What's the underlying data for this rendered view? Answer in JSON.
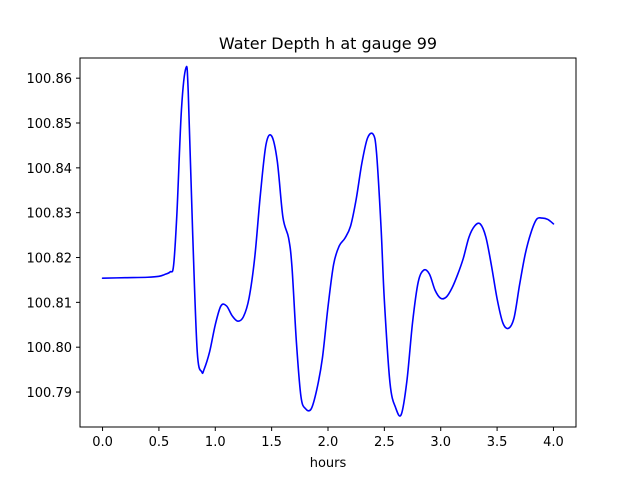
{
  "chart_data": {
    "type": "line",
    "title": "Water Depth h at gauge 99",
    "xlabel": "hours",
    "ylabel": "",
    "xlim": [
      -0.2,
      4.2
    ],
    "ylim": [
      100.7822,
      100.8645
    ],
    "xticks": [
      0.0,
      0.5,
      1.0,
      1.5,
      2.0,
      2.5,
      3.0,
      3.5,
      4.0
    ],
    "xtick_labels": [
      "0.0",
      "0.5",
      "1.0",
      "1.5",
      "2.0",
      "2.5",
      "3.0",
      "3.5",
      "4.0"
    ],
    "yticks": [
      100.79,
      100.8,
      100.81,
      100.82,
      100.83,
      100.84,
      100.85,
      100.86
    ],
    "ytick_labels": [
      "100.79",
      "100.80",
      "100.81",
      "100.82",
      "100.83",
      "100.84",
      "100.85",
      "100.86"
    ],
    "grid": false,
    "legend": "none",
    "series": [
      {
        "color": "#0000ff",
        "x": [
          0.0,
          0.2,
          0.4,
          0.5,
          0.55,
          0.6,
          0.63,
          0.66,
          0.7,
          0.74,
          0.76,
          0.8,
          0.84,
          0.88,
          0.9,
          0.95,
          1.0,
          1.05,
          1.1,
          1.15,
          1.2,
          1.25,
          1.3,
          1.35,
          1.4,
          1.45,
          1.5,
          1.55,
          1.6,
          1.65,
          1.68,
          1.72,
          1.76,
          1.8,
          1.85,
          1.9,
          1.95,
          2.0,
          2.05,
          2.1,
          2.15,
          2.2,
          2.25,
          2.3,
          2.35,
          2.4,
          2.43,
          2.47,
          2.5,
          2.55,
          2.6,
          2.65,
          2.7,
          2.75,
          2.8,
          2.85,
          2.9,
          2.95,
          3.0,
          3.05,
          3.1,
          3.15,
          3.2,
          3.25,
          3.3,
          3.35,
          3.4,
          3.45,
          3.5,
          3.55,
          3.6,
          3.65,
          3.7,
          3.75,
          3.8,
          3.85,
          3.9,
          3.95,
          4.0
        ],
        "y": [
          100.8154,
          100.8155,
          100.8156,
          100.8158,
          100.8162,
          100.8168,
          100.8182,
          100.83,
          100.853,
          100.8623,
          100.857,
          100.825,
          100.799,
          100.7945,
          100.795,
          100.799,
          100.805,
          100.8092,
          100.8092,
          100.807,
          100.8058,
          100.8068,
          100.811,
          100.82,
          100.834,
          100.8452,
          100.8471,
          100.8415,
          100.829,
          100.8244,
          100.818,
          100.801,
          100.789,
          100.7863,
          100.7862,
          100.7905,
          100.7975,
          100.809,
          100.8185,
          100.8226,
          100.8243,
          100.827,
          100.833,
          100.841,
          100.8466,
          100.8475,
          100.8435,
          100.827,
          100.8104,
          100.792,
          100.7865,
          100.785,
          100.7925,
          100.8055,
          100.8145,
          100.8172,
          100.8163,
          100.8127,
          100.8109,
          100.8112,
          100.8132,
          100.8162,
          100.8198,
          100.8245,
          100.827,
          100.8275,
          100.8246,
          100.8182,
          100.8108,
          100.8055,
          100.8042,
          100.8065,
          100.814,
          100.8208,
          100.8255,
          100.8285,
          100.8288,
          100.8285,
          100.8275
        ]
      }
    ]
  }
}
